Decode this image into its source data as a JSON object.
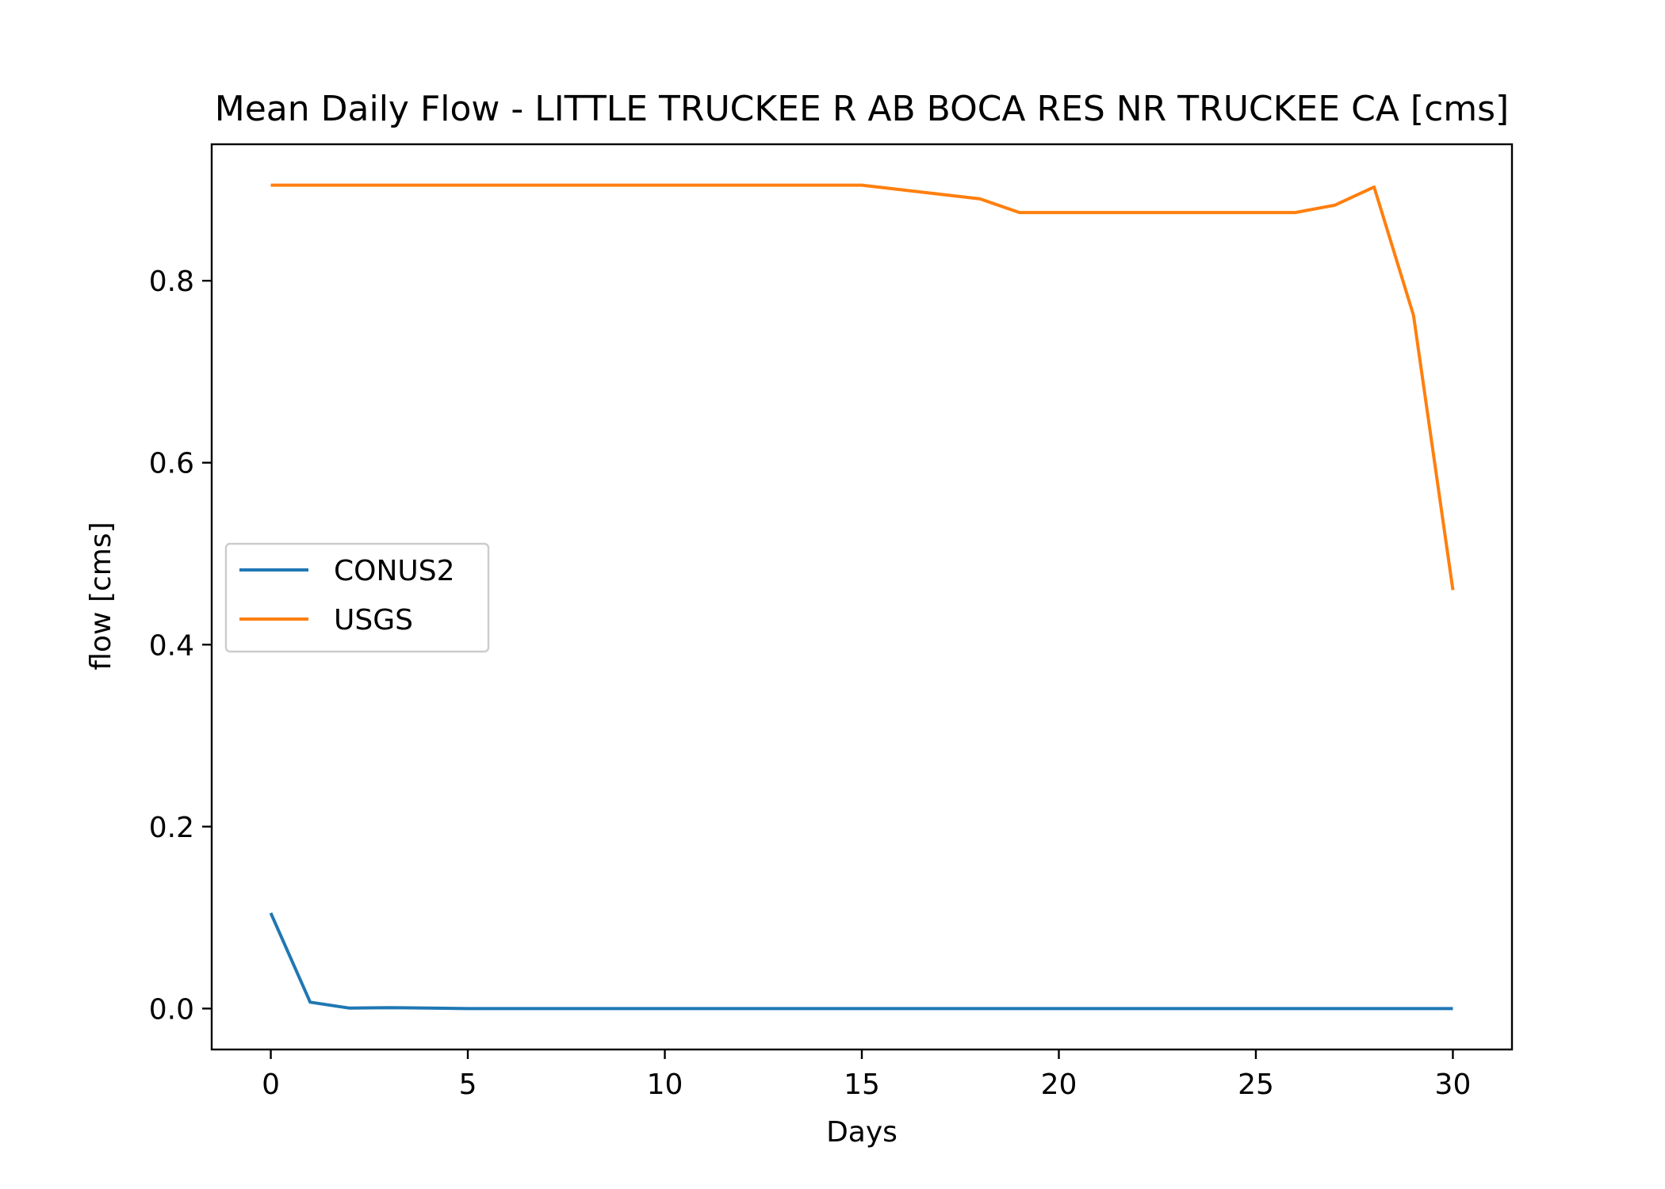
{
  "chart_data": {
    "type": "line",
    "title": "Mean Daily Flow - LITTLE TRUCKEE R AB BOCA RES NR TRUCKEE CA [cms]",
    "xlabel": "Days",
    "ylabel": "flow [cms]",
    "xlim": [
      -1.5,
      31.5
    ],
    "ylim": [
      -0.045,
      0.95
    ],
    "xticks": [
      0,
      5,
      10,
      15,
      20,
      25,
      30
    ],
    "xtick_labels": [
      "0",
      "5",
      "10",
      "15",
      "20",
      "25",
      "30"
    ],
    "yticks": [
      0.0,
      0.2,
      0.4,
      0.6,
      0.8
    ],
    "ytick_labels": [
      "0.0",
      "0.2",
      "0.4",
      "0.6",
      "0.8"
    ],
    "grid": false,
    "legend_position": "center-left",
    "x": [
      0,
      1,
      2,
      3,
      4,
      5,
      6,
      7,
      8,
      9,
      10,
      11,
      12,
      13,
      14,
      15,
      16,
      17,
      18,
      19,
      20,
      21,
      22,
      23,
      24,
      25,
      26,
      27,
      28,
      29,
      30
    ],
    "series": [
      {
        "name": "CONUS2",
        "color": "#1f77b4",
        "values": [
          0.105,
          0.007,
          0.0005,
          0.001,
          0.0005,
          0,
          0,
          0,
          0,
          0,
          0,
          0,
          0,
          0,
          0,
          0,
          0,
          0,
          0,
          0,
          0,
          0,
          0,
          0,
          0,
          0,
          0,
          0,
          0,
          0,
          0
        ]
      },
      {
        "name": "USGS",
        "color": "#ff7f0e",
        "values": [
          0.905,
          0.905,
          0.905,
          0.905,
          0.905,
          0.905,
          0.905,
          0.905,
          0.905,
          0.905,
          0.905,
          0.905,
          0.905,
          0.905,
          0.905,
          0.905,
          0.9,
          0.895,
          0.89,
          0.875,
          0.875,
          0.875,
          0.875,
          0.875,
          0.875,
          0.875,
          0.875,
          0.883,
          0.903,
          0.762,
          0.46
        ]
      }
    ]
  }
}
